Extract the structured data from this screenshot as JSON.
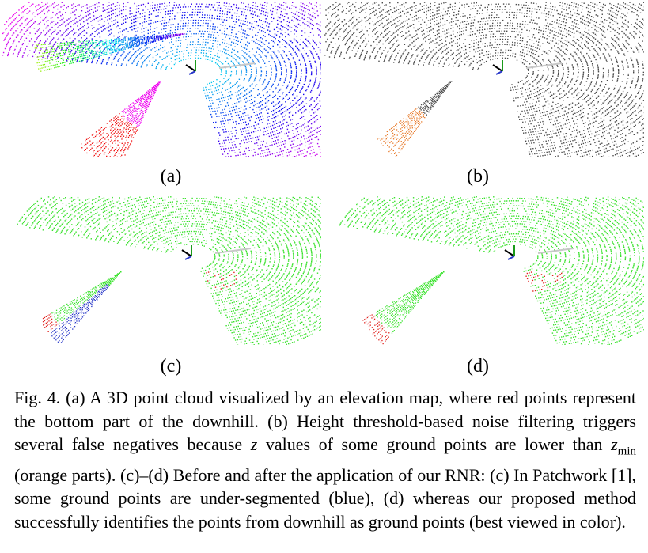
{
  "figure": {
    "panels": [
      {
        "id": "a",
        "label": "(a)"
      },
      {
        "id": "b",
        "label": "(b)"
      },
      {
        "id": "c",
        "label": "(c)"
      },
      {
        "id": "d",
        "label": "(d)"
      }
    ],
    "caption": {
      "fig_label": "Fig. 4.",
      "part1": "(a) A 3D point cloud visualized by an elevation map, where red points represent the bottom part of the downhill. (b) Height threshold-based noise filtering triggers several false negatives because",
      "var_z": "z",
      "part2": "values of some ground points are lower than",
      "zmin_base": "z",
      "zmin_sub": "min",
      "part3": "(orange parts). (c)–(d) Before and after the application of our RNR: (c) In Patchwork [1], some ground points are under-segmented (blue), (d) whereas our proposed method successfully identifies the points from downhill as ground points (best viewed in color)."
    }
  },
  "colors": {
    "ground_green": "#39e22c",
    "under_segmented_blue": "#2636c8",
    "downhill_red": "#e0221e",
    "false_negative_orange": "#e87a2a",
    "gray_points": "#4a4a4a"
  }
}
